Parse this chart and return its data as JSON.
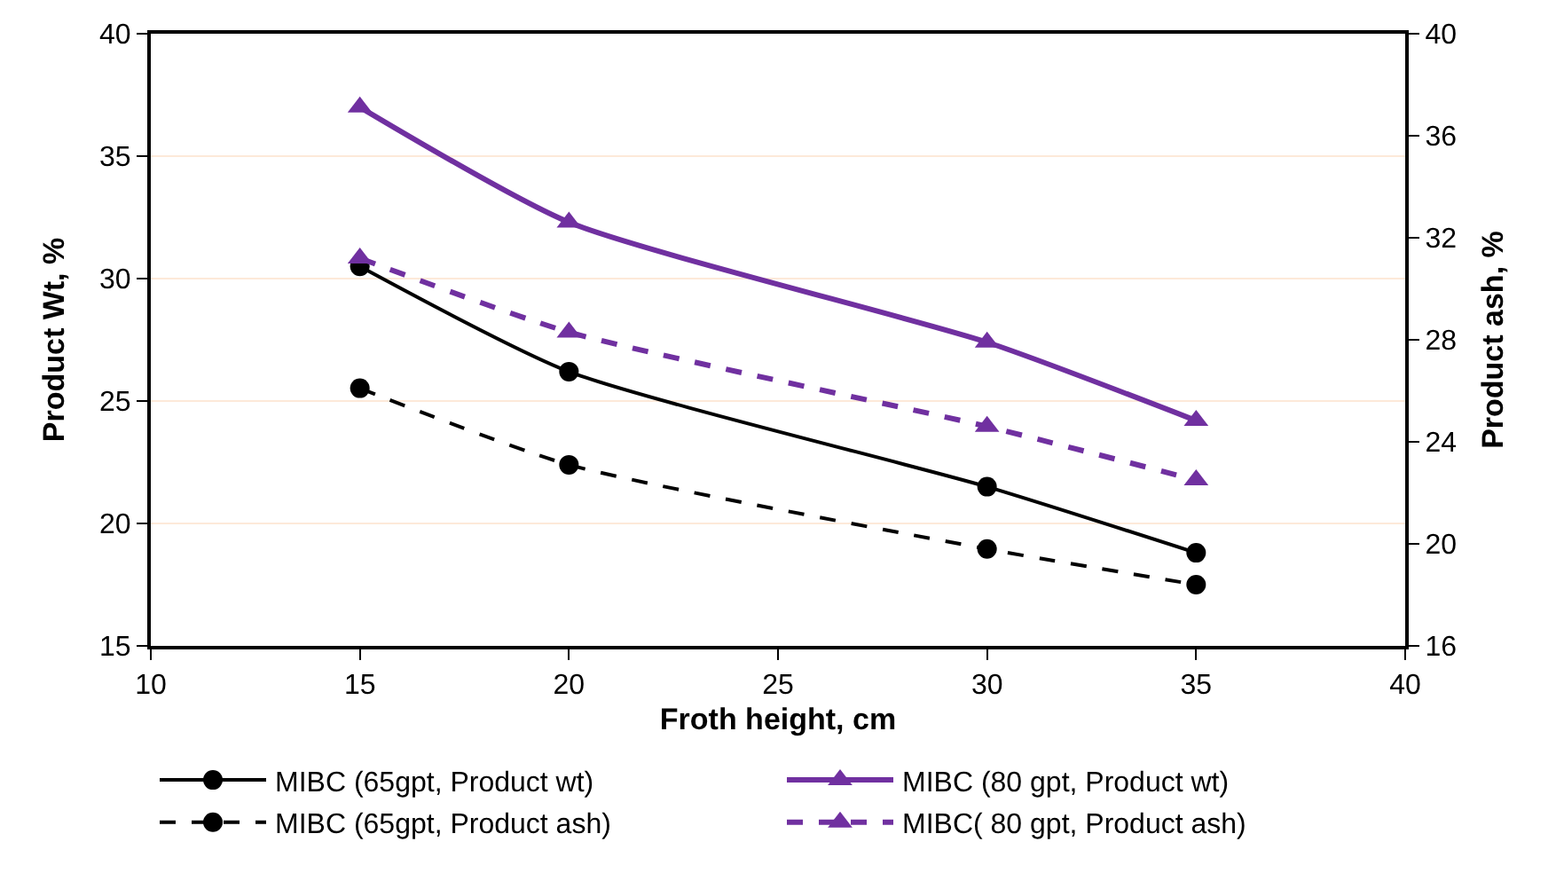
{
  "chart_data": {
    "type": "line",
    "xlabel": "Froth height, cm",
    "ylabel": "Product Wt, %",
    "y2label": "Product ash, %",
    "x": [
      15,
      20,
      30,
      35
    ],
    "xlim": [
      10,
      40
    ],
    "xticks": [
      10,
      15,
      20,
      25,
      30,
      35,
      40
    ],
    "ylim": [
      15,
      40
    ],
    "yticks": [
      15,
      20,
      25,
      30,
      35,
      40
    ],
    "y2lim": [
      16,
      40
    ],
    "y2ticks": [
      16,
      20,
      24,
      28,
      32,
      36,
      40
    ],
    "grid": "y",
    "legend": "bottom",
    "series": [
      {
        "name": "MIBC (65gpt, Product wt)",
        "color": "#000000",
        "values": [
          30.5,
          26.2,
          21.5,
          18.8
        ],
        "marker": "circle",
        "line_style": "solid"
      },
      {
        "name": "MIBC (80 gpt, Product wt)",
        "color": "#7030a0",
        "values": [
          37.0,
          32.3,
          27.4,
          24.2
        ],
        "marker": "triangle",
        "line_style": "solid"
      },
      {
        "name": "MIBC (65gpt, Product ash)",
        "color": "#000000",
        "values": [
          26.1,
          23.1,
          19.8,
          18.4
        ],
        "marker": "circle",
        "line_style": "dashed",
        "axis": "y2"
      },
      {
        "name": "MIBC( 80 gpt, Product ash)",
        "color": "#7030a0",
        "values": [
          31.2,
          28.3,
          24.6,
          22.5
        ],
        "marker": "triangle",
        "line_style": "dashed",
        "axis": "y2"
      }
    ]
  }
}
